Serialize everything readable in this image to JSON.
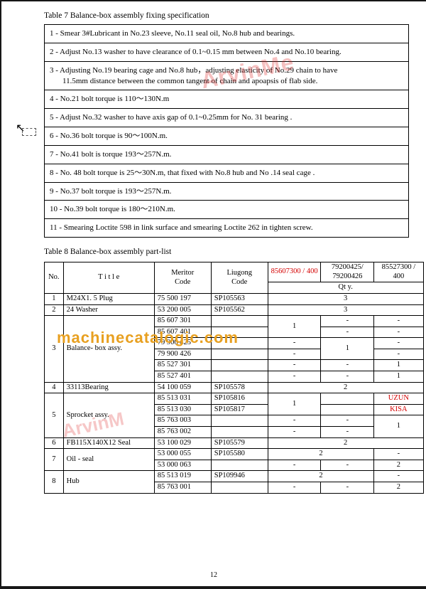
{
  "table7": {
    "caption": "Table 7 Balance-box assembly fixing specification",
    "rows": [
      "1 - Smear 3#Lubricant in No.23 sleeve, No.11 seal oil, No.8 hub and bearings.",
      "2 - Adjust No.13 washer to have clearance of 0.1~0.15 mm between No.4 and No.10 bearing.",
      "3 - Adjusting No.19 bearing cage and  No.8 hub，adjusting  elasticity of No.29 chain to have\n11.5mm distance between the common tangent of chain and apoapsis of flab side.",
      "4 - No.21 bolt torque is 110～130N.m",
      "5 - Adjust No.32 washer to have axis gap of 0.1~0.25mm for No. 31 bearing .",
      "6 - No.36 bolt torque is 90～100N.m.",
      "7 - No.41 bolt is torque 193～257N.m.",
      "8 - No. 48 bolt  torque is 25～30N.m, that fixed with No.8 hub and No .14 seal cage .",
      "9 - No.37 bolt torque is 193～257N.m.",
      "10 - No.39 bolt torque is 180～210N.m.",
      "11 - Smearing Loctite 598 in link surface and smearing Loctite 262 in tighten screw."
    ]
  },
  "table8": {
    "caption": "Table 8 Balance-box assembly part-list",
    "headers": {
      "no": "No.",
      "title": "T i t l e",
      "meritor": "Meritor\nCode",
      "liugong": "Liugong\nCode",
      "col1": "85607300 / 400",
      "col2": "79200425/ 79200426",
      "col3": "85527300 / 400",
      "qty": "Qt y."
    },
    "rows": [
      {
        "no": "1",
        "title": "M24X1. 5 Plug",
        "mer": "75 500 197",
        "liu": "SP105563",
        "q": [
          {
            "t": "3",
            "s": 3
          }
        ]
      },
      {
        "no": "2",
        "title": "24 Washer",
        "mer": "53 200 005",
        "liu": "SP105562",
        "q": [
          {
            "t": "3",
            "s": 3
          }
        ]
      },
      {
        "no": "3",
        "title": "Balance- box assy.",
        "sub": [
          {
            "mer": "85 607 301",
            "liu": "",
            "q": [
              {
                "t": "1",
                "s": 1,
                "r": 2
              },
              {
                "t": "-",
                "s": 1
              },
              {
                "t": "-",
                "s": 1
              }
            ]
          },
          {
            "mer": "85 607 401",
            "liu": "",
            "q": [
              null,
              {
                "t": "-",
                "s": 1
              },
              {
                "t": "-",
                "s": 1
              }
            ]
          },
          {
            "mer": "79 900 425",
            "liu": "",
            "q": [
              {
                "t": "-",
                "s": 1
              },
              {
                "t": "1",
                "s": 1,
                "r": 2
              },
              {
                "t": "-",
                "s": 1
              }
            ]
          },
          {
            "mer": "79 900 426",
            "liu": "",
            "q": [
              {
                "t": "-",
                "s": 1
              },
              null,
              {
                "t": "-",
                "s": 1
              }
            ]
          },
          {
            "mer": "85 527 301",
            "liu": "",
            "q": [
              {
                "t": "-",
                "s": 1
              },
              {
                "t": "-",
                "s": 1
              },
              {
                "t": "1",
                "s": 1
              }
            ]
          },
          {
            "mer": "85 527 401",
            "liu": "",
            "q": [
              {
                "t": "-",
                "s": 1
              },
              {
                "t": "-",
                "s": 1
              },
              {
                "t": "1",
                "s": 1
              }
            ]
          }
        ]
      },
      {
        "no": "4",
        "title": "33113Bearing",
        "mer": "54 100 059",
        "liu": "SP105578",
        "q": [
          {
            "t": "2",
            "s": 3
          }
        ]
      },
      {
        "no": "5",
        "title": "Sprocket assy.",
        "sub": [
          {
            "mer": "85 513 031",
            "liu": "SP105816",
            "q": [
              {
                "t": "1",
                "s": 1,
                "r": 2
              },
              {
                "t": "",
                "s": 1
              },
              {
                "t": "UZUN",
                "s": 1,
                "red": true
              }
            ]
          },
          {
            "mer": "85 513 030",
            "liu": "SP105817",
            "q": [
              null,
              {
                "t": "",
                "s": 1
              },
              {
                "t": "KISA",
                "s": 1,
                "red": true
              }
            ]
          },
          {
            "mer": "85 763 003",
            "liu": "",
            "q": [
              {
                "t": "-",
                "s": 1
              },
              {
                "t": "-",
                "s": 1
              },
              {
                "t": "1",
                "s": 1,
                "r": 2
              }
            ]
          },
          {
            "mer": "85 763 002",
            "liu": "",
            "q": [
              {
                "t": "-",
                "s": 1
              },
              {
                "t": "-",
                "s": 1
              },
              null
            ]
          }
        ]
      },
      {
        "no": "6",
        "title": "FB115X140X12 Seal",
        "mer": "53 100 029",
        "liu": "SP105579",
        "q": [
          {
            "t": "2",
            "s": 3
          }
        ]
      },
      {
        "no": "7",
        "title": "Oil - seal",
        "sub": [
          {
            "mer": "53 000 055",
            "liu": "SP105580",
            "q": [
              {
                "t": "2",
                "s": 2
              },
              {
                "t": "-",
                "s": 1
              }
            ]
          },
          {
            "mer": "53 000 063",
            "liu": "",
            "q": [
              {
                "t": "-",
                "s": 1
              },
              {
                "t": "-",
                "s": 1
              },
              {
                "t": "2",
                "s": 1
              }
            ]
          }
        ]
      },
      {
        "no": "8",
        "title": "Hub",
        "sub": [
          {
            "mer": "85 513 019",
            "liu": "SP109946",
            "q": [
              {
                "t": "2",
                "s": 2
              },
              {
                "t": "-",
                "s": 1
              }
            ]
          },
          {
            "mer": "85 763 001",
            "liu": "",
            "q": [
              {
                "t": "-",
                "s": 1
              },
              {
                "t": "-",
                "s": 1
              },
              {
                "t": "2",
                "s": 1
              }
            ]
          }
        ]
      }
    ]
  },
  "watermarks": {
    "w1": "ArvinMe",
    "w2": "ArvinM",
    "site": "machinecatalogic.com"
  },
  "page_number": "12",
  "colors": {
    "red": "#d40000",
    "orange": "#e8a020",
    "wm_red": "rgba(220,30,30,0.28)"
  }
}
